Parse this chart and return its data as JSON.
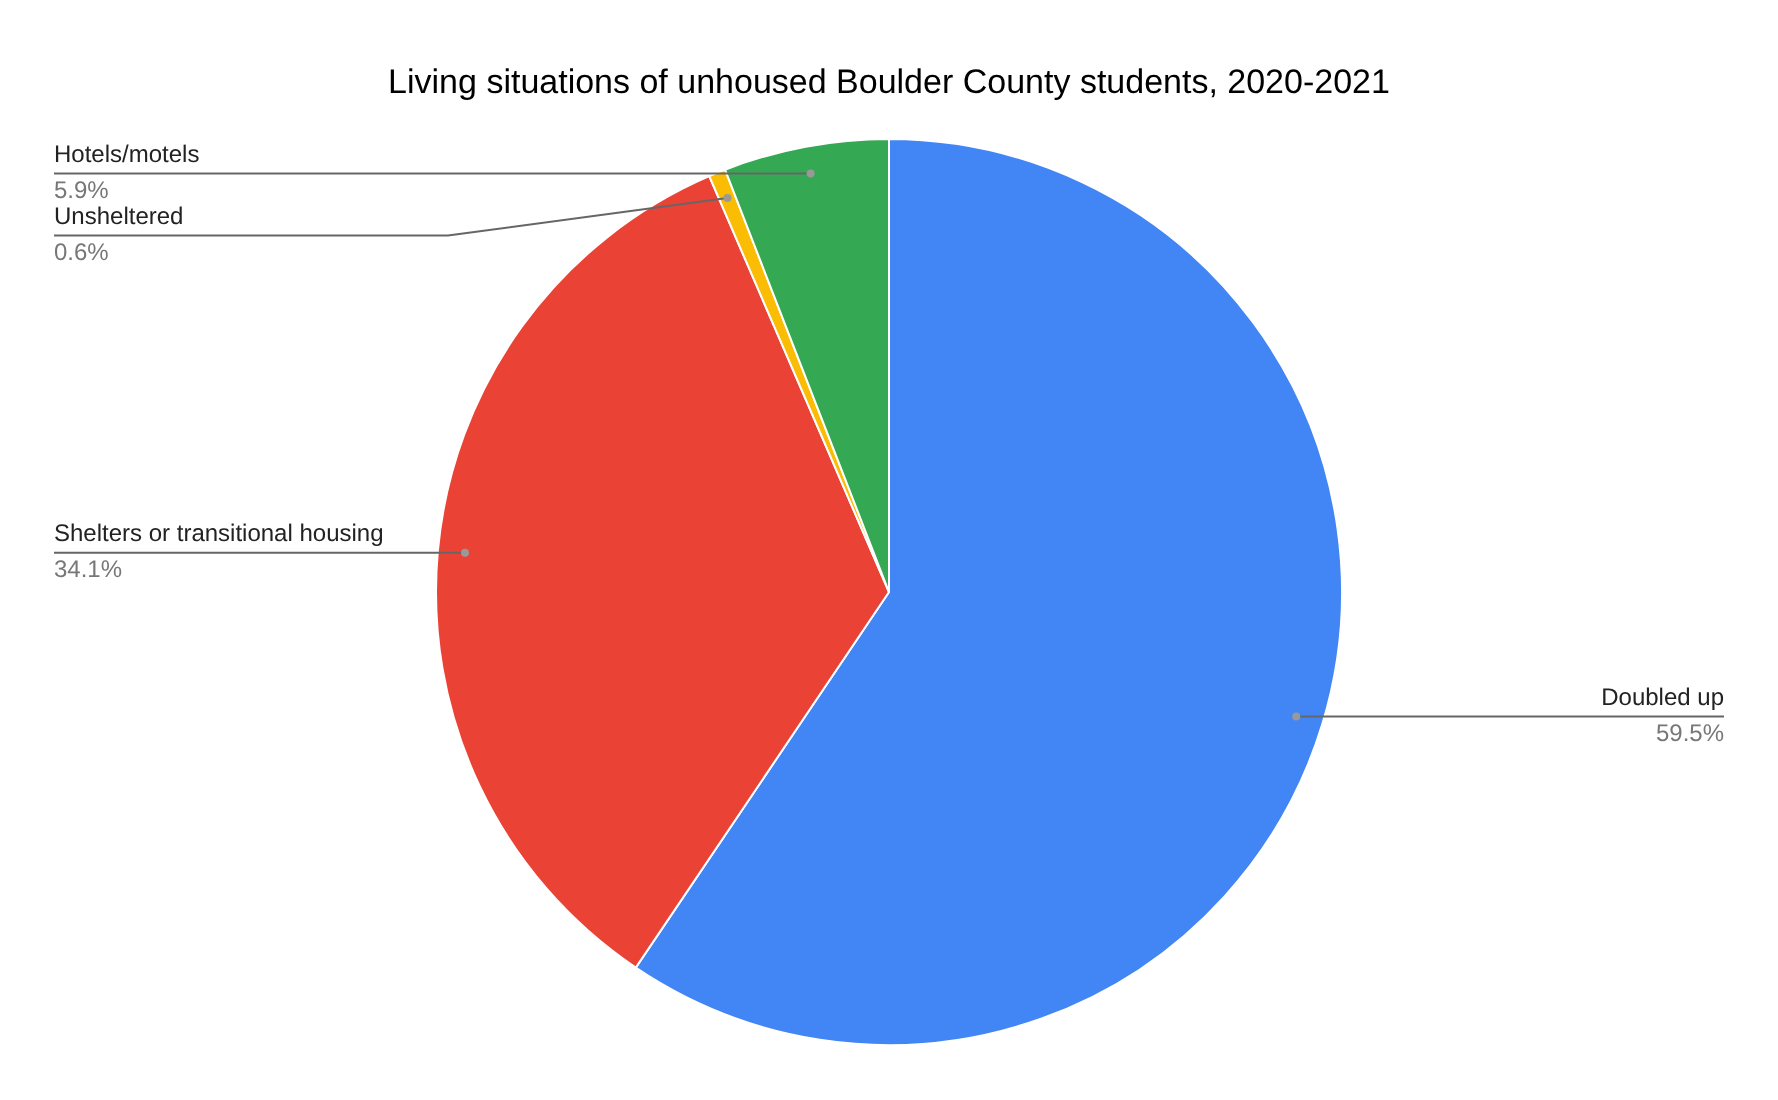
{
  "chart_data": {
    "type": "pie",
    "title": "Living situations of unhoused Boulder County students, 2020-2021",
    "categories": [
      "Doubled up",
      "Shelters or transitional housing",
      "Unsheltered",
      "Hotels/motels"
    ],
    "values": [
      59.5,
      34.1,
      0.6,
      5.9
    ],
    "colors": [
      "#4285f4",
      "#ea4335",
      "#fbbc04",
      "#34a853"
    ],
    "value_labels": [
      "59.5%",
      "34.1%",
      "0.6%",
      "5.9%"
    ],
    "legend": false
  }
}
